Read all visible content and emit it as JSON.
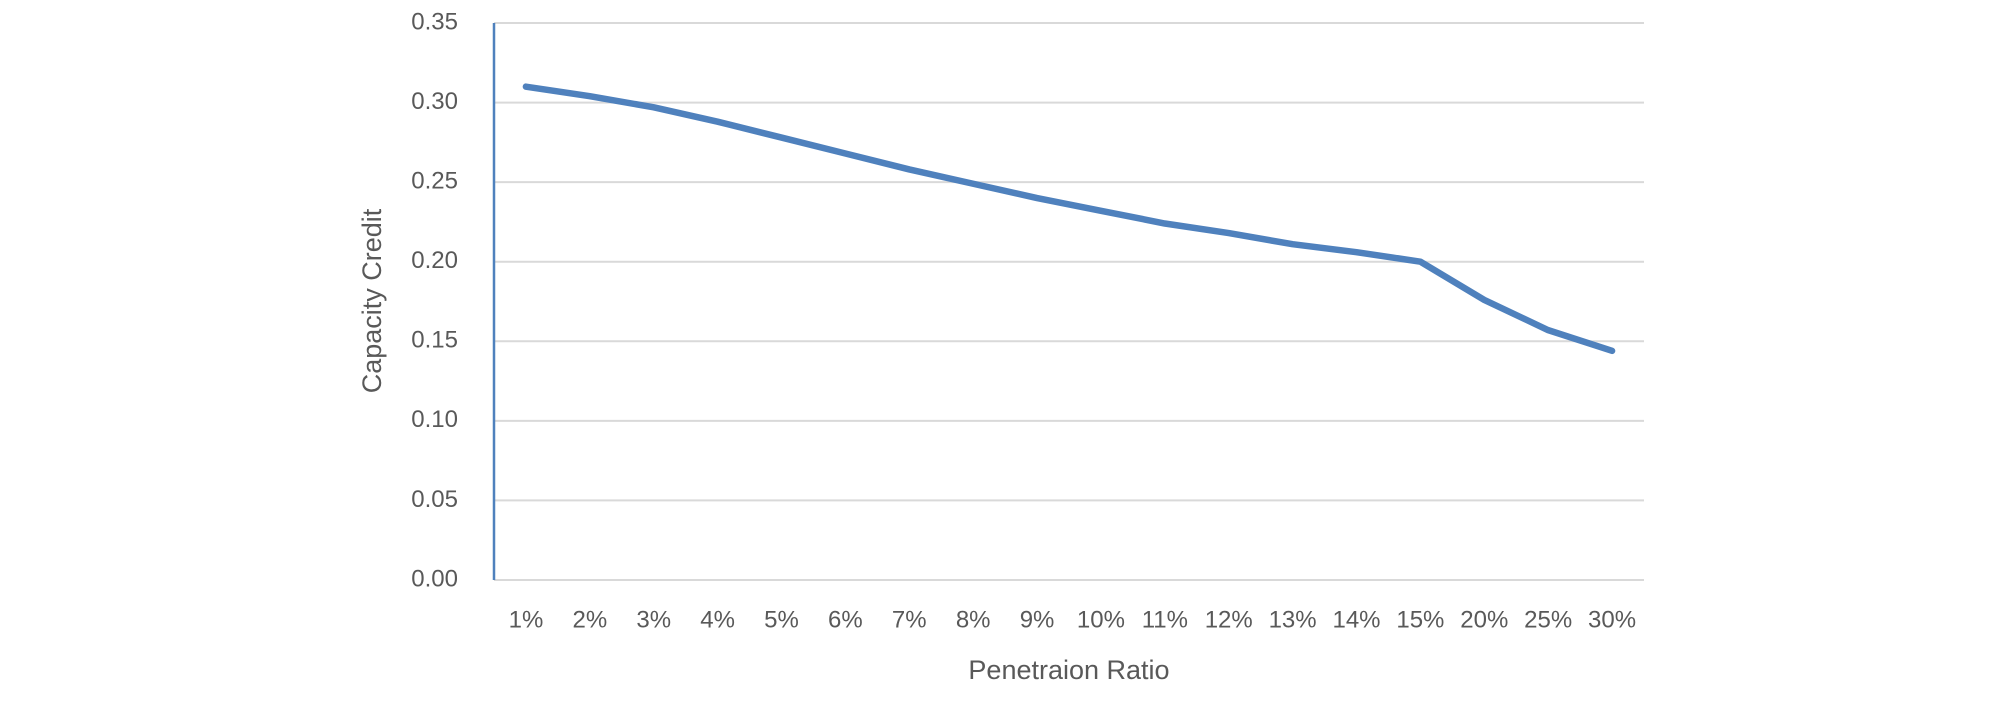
{
  "chart_data": {
    "type": "line",
    "x_label": "Penetraion Ratio",
    "y_label": "Capacity Credit",
    "categories": [
      "1%",
      "2%",
      "3%",
      "4%",
      "5%",
      "6%",
      "7%",
      "8%",
      "9%",
      "10%",
      "11%",
      "12%",
      "13%",
      "14%",
      "15%",
      "20%",
      "25%",
      "30%"
    ],
    "series": [
      {
        "color": "#4f81bd",
        "values": [
          0.31,
          0.304,
          0.297,
          0.288,
          0.278,
          0.268,
          0.258,
          0.249,
          0.24,
          0.232,
          0.224,
          0.218,
          0.211,
          0.206,
          0.2,
          0.176,
          0.157,
          0.144
        ]
      }
    ],
    "ylim": [
      0,
      0.35
    ],
    "yticks": [
      {
        "value": 0,
        "label": "0.00"
      },
      0.05,
      {
        "value": 0.1,
        "label": "0.10"
      },
      0.15,
      {
        "value": 0.2,
        "label": "0.20"
      },
      0.25,
      {
        "value": 0.3,
        "label": "0.30"
      },
      0.35
    ],
    "grid": true
  }
}
